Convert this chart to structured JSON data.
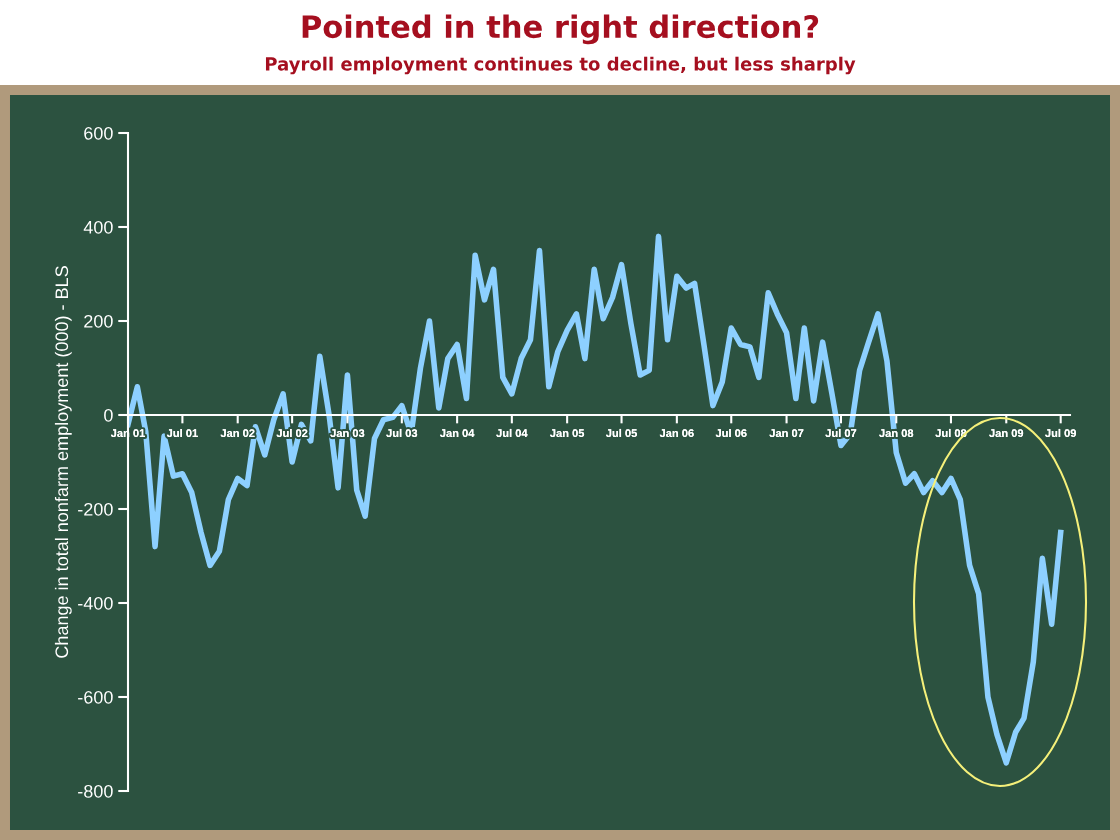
{
  "chart_data": {
    "type": "line",
    "title": "Pointed in the right direction?",
    "subtitle": "Payroll employment continues to decline, but less sharply",
    "ylabel": "Change in total nonfarm employment (000) - BLS",
    "x": [
      "2001-01",
      "2001-02",
      "2001-03",
      "2001-04",
      "2001-05",
      "2001-06",
      "2001-07",
      "2001-08",
      "2001-09",
      "2001-10",
      "2001-11",
      "2001-12",
      "2002-01",
      "2002-02",
      "2002-03",
      "2002-04",
      "2002-05",
      "2002-06",
      "2002-07",
      "2002-08",
      "2002-09",
      "2002-10",
      "2002-11",
      "2002-12",
      "2003-01",
      "2003-02",
      "2003-03",
      "2003-04",
      "2003-05",
      "2003-06",
      "2003-07",
      "2003-08",
      "2003-09",
      "2003-10",
      "2003-11",
      "2003-12",
      "2004-01",
      "2004-02",
      "2004-03",
      "2004-04",
      "2004-05",
      "2004-06",
      "2004-07",
      "2004-08",
      "2004-09",
      "2004-10",
      "2004-11",
      "2004-12",
      "2005-01",
      "2005-02",
      "2005-03",
      "2005-04",
      "2005-05",
      "2005-06",
      "2005-07",
      "2005-08",
      "2005-09",
      "2005-10",
      "2005-11",
      "2005-12",
      "2006-01",
      "2006-02",
      "2006-03",
      "2006-04",
      "2006-05",
      "2006-06",
      "2006-07",
      "2006-08",
      "2006-09",
      "2006-10",
      "2006-11",
      "2006-12",
      "2007-01",
      "2007-02",
      "2007-03",
      "2007-04",
      "2007-05",
      "2007-06",
      "2007-07",
      "2007-08",
      "2007-09",
      "2007-10",
      "2007-11",
      "2007-12",
      "2008-01",
      "2008-02",
      "2008-03",
      "2008-04",
      "2008-05",
      "2008-06",
      "2008-07",
      "2008-08",
      "2008-09",
      "2008-10",
      "2008-11",
      "2008-12",
      "2009-01",
      "2009-02",
      "2009-03",
      "2009-04",
      "2009-05",
      "2009-06",
      "2009-07"
    ],
    "series": [
      {
        "color": "#8dd0ff",
        "values": [
          -20,
          60,
          -35,
          -280,
          -45,
          -130,
          -125,
          -165,
          -250,
          -320,
          -290,
          -180,
          -135,
          -150,
          -25,
          -85,
          -10,
          45,
          -100,
          -20,
          -55,
          125,
          0,
          -155,
          85,
          -160,
          -215,
          -50,
          -10,
          -5,
          20,
          -40,
          100,
          200,
          15,
          120,
          150,
          35,
          340,
          245,
          310,
          80,
          45,
          120,
          160,
          350,
          60,
          135,
          180,
          215,
          120,
          310,
          205,
          250,
          320,
          195,
          85,
          95,
          380,
          160,
          295,
          270,
          280,
          150,
          20,
          70,
          185,
          150,
          145,
          80,
          260,
          215,
          175,
          35,
          185,
          30,
          155,
          45,
          -65,
          -40,
          95,
          155,
          215,
          115,
          -80,
          -145,
          -125,
          -165,
          -140,
          -165,
          -135,
          -180,
          -320,
          -380,
          -600,
          -680,
          -740,
          -675,
          -645,
          -525,
          -305,
          -445,
          -250
        ]
      }
    ],
    "xlim": [
      "2001-01",
      "2009-08"
    ],
    "xticks": [
      {
        "value": "2001-01",
        "label": "Jan 01"
      },
      {
        "value": "2001-07",
        "label": "Jul 01"
      },
      {
        "value": "2002-01",
        "label": "Jan 02"
      },
      {
        "value": "2002-07",
        "label": "Jul 02"
      },
      {
        "value": "2003-01",
        "label": "Jan 03"
      },
      {
        "value": "2003-07",
        "label": "Jul 03"
      },
      {
        "value": "2004-01",
        "label": "Jan 04"
      },
      {
        "value": "2004-07",
        "label": "Jul 04"
      },
      {
        "value": "2005-01",
        "label": "Jan 05"
      },
      {
        "value": "2005-07",
        "label": "Jul 05"
      },
      {
        "value": "2006-01",
        "label": "Jan 06"
      },
      {
        "value": "2006-07",
        "label": "Jul 06"
      },
      {
        "value": "2007-01",
        "label": "Jan 07"
      },
      {
        "value": "2007-07",
        "label": "Jul 07"
      },
      {
        "value": "2008-01",
        "label": "Jan 08"
      },
      {
        "value": "2008-07",
        "label": "Jul 08"
      },
      {
        "value": "2009-01",
        "label": "Jan 09"
      },
      {
        "value": "2009-07",
        "label": "Jul 09"
      }
    ],
    "ylim": [
      -800,
      600
    ],
    "yticks": [
      -800,
      -600,
      -400,
      -200,
      0,
      200,
      400,
      600
    ],
    "grid": false,
    "marker": "none",
    "line_style": "solid"
  }
}
